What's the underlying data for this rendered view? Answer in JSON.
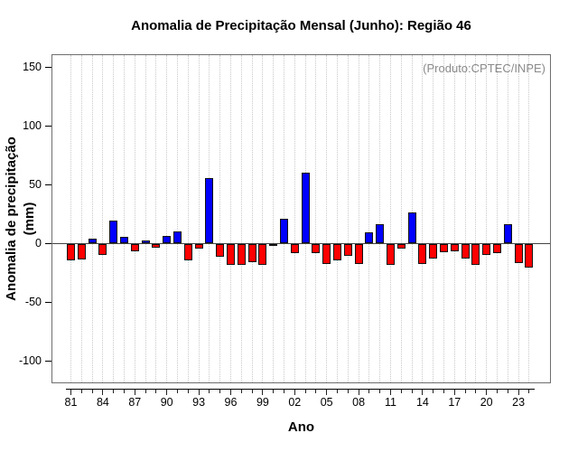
{
  "title": "Anomalia de Precipitação Mensal (Junho): Região 46",
  "annotation": "(Produto:CPTEC/INPE)",
  "axes": {
    "ylabel": "Anomalia de precipitação (mm)",
    "xlabel": "Ano"
  },
  "colors": {
    "positive": "#0000ff",
    "negative": "#ff0000",
    "bar_border": "#111111",
    "grid": "#c9c9c9",
    "frame": "#6e6e6e",
    "zero_line": "#444444",
    "axis": "#000000",
    "annotation_text": "#8a8a8a"
  },
  "chart_data": {
    "type": "bar",
    "title": "Anomalia de Precipitação Mensal (Junho): Região 46",
    "xlabel": "Ano",
    "ylabel": "Anomalia de precipitação (mm)",
    "annotation": "(Produto:CPTEC/INPE)",
    "x": [
      1981,
      1982,
      1983,
      1984,
      1985,
      1986,
      1987,
      1988,
      1989,
      1990,
      1991,
      1992,
      1993,
      1994,
      1995,
      1996,
      1997,
      1998,
      1999,
      2000,
      2001,
      2002,
      2003,
      2004,
      2005,
      2006,
      2007,
      2008,
      2009,
      2010,
      2011,
      2012,
      2013,
      2014,
      2015,
      2016,
      2017,
      2018,
      2019,
      2020,
      2021,
      2022,
      2023,
      2024
    ],
    "values": [
      -14,
      -13,
      4,
      -9,
      19,
      5,
      -6,
      2,
      -3,
      6,
      10,
      -14,
      -4,
      55,
      -11,
      -18,
      -18,
      -15,
      -18,
      -1,
      21,
      -8,
      60,
      -8,
      -17,
      -14,
      -10,
      -17,
      9,
      16,
      -18,
      -4,
      26,
      -17,
      -12,
      -7,
      -6,
      -12,
      -18,
      -9,
      -8,
      16,
      -16,
      -20
    ],
    "ylim": [
      -119,
      161
    ],
    "yticks": [
      150,
      100,
      50,
      0,
      -50,
      -100
    ],
    "xtick_step": 3,
    "xtick_labels": [
      "81",
      "84",
      "87",
      "90",
      "93",
      "96",
      "99",
      "02",
      "05",
      "08",
      "11",
      "14",
      "17",
      "20",
      "23"
    ],
    "grid": "vertical-dotted",
    "legend": "none",
    "positive_color": "#0000ff",
    "negative_color": "#ff0000"
  }
}
